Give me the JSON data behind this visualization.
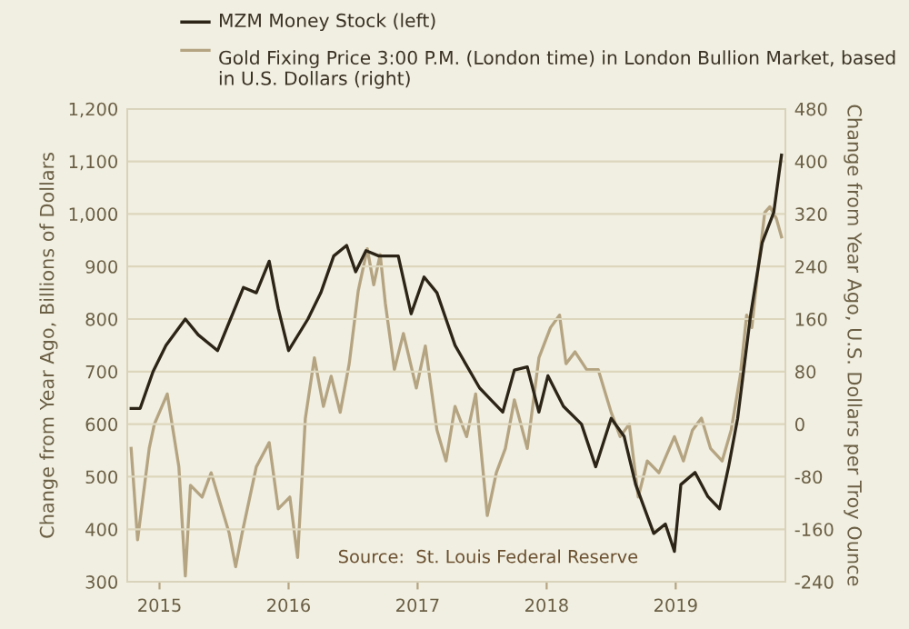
{
  "chart_data": {
    "type": "line",
    "xlabel": null,
    "ylabel": "Change from Year Ago, Billions of Dollars",
    "y2label": "Change from Year Ago, U.S. Dollars per Troy Ounce",
    "xlim": [
      2014.75,
      2019.85
    ],
    "xticks": [
      2015,
      2016,
      2017,
      2018,
      2019
    ],
    "ylim": [
      300,
      1200
    ],
    "yticks": [
      {
        "value": 300,
        "label": "300"
      },
      {
        "value": 400,
        "label": "400"
      },
      {
        "value": 500,
        "label": "500"
      },
      {
        "value": 600,
        "label": "600"
      },
      {
        "value": 700,
        "label": "700"
      },
      {
        "value": 800,
        "label": "800"
      },
      {
        "value": 900,
        "label": "900"
      },
      {
        "value": 1000,
        "label": "1,000"
      },
      {
        "value": 1100,
        "label": "1,100"
      },
      {
        "value": 1200,
        "label": "1,200"
      }
    ],
    "y2lim": [
      -240,
      480
    ],
    "y2ticks": [
      -240,
      -160,
      -80,
      0,
      80,
      160,
      240,
      320,
      400,
      480
    ],
    "grid": "y",
    "legend": "top",
    "annotations": [
      "Source:  St. Louis Federal Reserve"
    ],
    "series": [
      {
        "name": "MZM Money Stock (left)",
        "color": "#2b2417",
        "x": [
          2014.78,
          2014.85,
          2014.95,
          2015.05,
          2015.2,
          2015.3,
          2015.45,
          2015.55,
          2015.65,
          2015.75,
          2015.85,
          2015.92,
          2016.0,
          2016.15,
          2016.25,
          2016.35,
          2016.45,
          2016.52,
          2016.6,
          2016.7,
          2016.85,
          2016.95,
          2017.05,
          2017.15,
          2017.22,
          2017.29,
          2017.48,
          2017.57,
          2017.66,
          2017.75,
          2017.85,
          2017.94,
          2018.01,
          2018.13,
          2018.27,
          2018.38,
          2018.5,
          2018.6,
          2018.69,
          2018.83,
          2018.92,
          2018.99,
          2019.04,
          2019.15,
          2019.25,
          2019.34,
          2019.41,
          2019.48,
          2019.58,
          2019.67,
          2019.76,
          2019.82
        ],
        "values": [
          630,
          630,
          700,
          750,
          800,
          770,
          740,
          800,
          860,
          850,
          910,
          820,
          740,
          800,
          850,
          920,
          940,
          890,
          930,
          920,
          920,
          810,
          880,
          850,
          800,
          750,
          669,
          646,
          623,
          703,
          709,
          623,
          692,
          634,
          600,
          519,
          611,
          577,
          485,
          392,
          410,
          358,
          485,
          508,
          462,
          439,
          519,
          611,
          807,
          945,
          1003,
          1112
        ]
      },
      {
        "name": "Gold Fixing Price 3:00 P.M. (London time) in London Bullion Market, based in U.S. Dollars (right)",
        "color": "#b5a482",
        "axis": "y2",
        "x": [
          2014.78,
          2014.83,
          2014.92,
          2014.96,
          2015.06,
          2015.15,
          2015.2,
          2015.24,
          2015.33,
          2015.4,
          2015.54,
          2015.59,
          2015.64,
          2015.75,
          2015.85,
          2015.92,
          2016.01,
          2016.07,
          2016.13,
          2016.2,
          2016.27,
          2016.33,
          2016.4,
          2016.47,
          2016.54,
          2016.61,
          2016.66,
          2016.71,
          2016.75,
          2016.82,
          2016.89,
          2016.99,
          2017.06,
          2017.15,
          2017.22,
          2017.29,
          2017.38,
          2017.45,
          2017.54,
          2017.61,
          2017.68,
          2017.75,
          2017.85,
          2017.94,
          2018.03,
          2018.1,
          2018.15,
          2018.22,
          2018.31,
          2018.4,
          2018.5,
          2018.57,
          2018.64,
          2018.71,
          2018.78,
          2018.87,
          2018.99,
          2019.06,
          2019.13,
          2019.2,
          2019.27,
          2019.36,
          2019.43,
          2019.5,
          2019.55,
          2019.59,
          2019.64,
          2019.69,
          2019.73,
          2019.78,
          2019.82
        ],
        "values": [
          -37,
          -176,
          -37,
          0,
          46,
          -65,
          -231,
          -93,
          -111,
          -74,
          -166,
          -217,
          -166,
          -65,
          -28,
          -129,
          -111,
          -203,
          9,
          101,
          27,
          73,
          18,
          92,
          203,
          267,
          212,
          258,
          184,
          83,
          138,
          55,
          119,
          -9,
          -56,
          27,
          -19,
          46,
          -139,
          -74,
          -37,
          37,
          -37,
          101,
          147,
          166,
          92,
          110,
          83,
          83,
          18,
          -19,
          0,
          -111,
          -56,
          -74,
          -19,
          -56,
          -9,
          9,
          -37,
          -56,
          -9,
          73,
          166,
          147,
          239,
          322,
          331,
          313,
          285
        ]
      }
    ]
  }
}
